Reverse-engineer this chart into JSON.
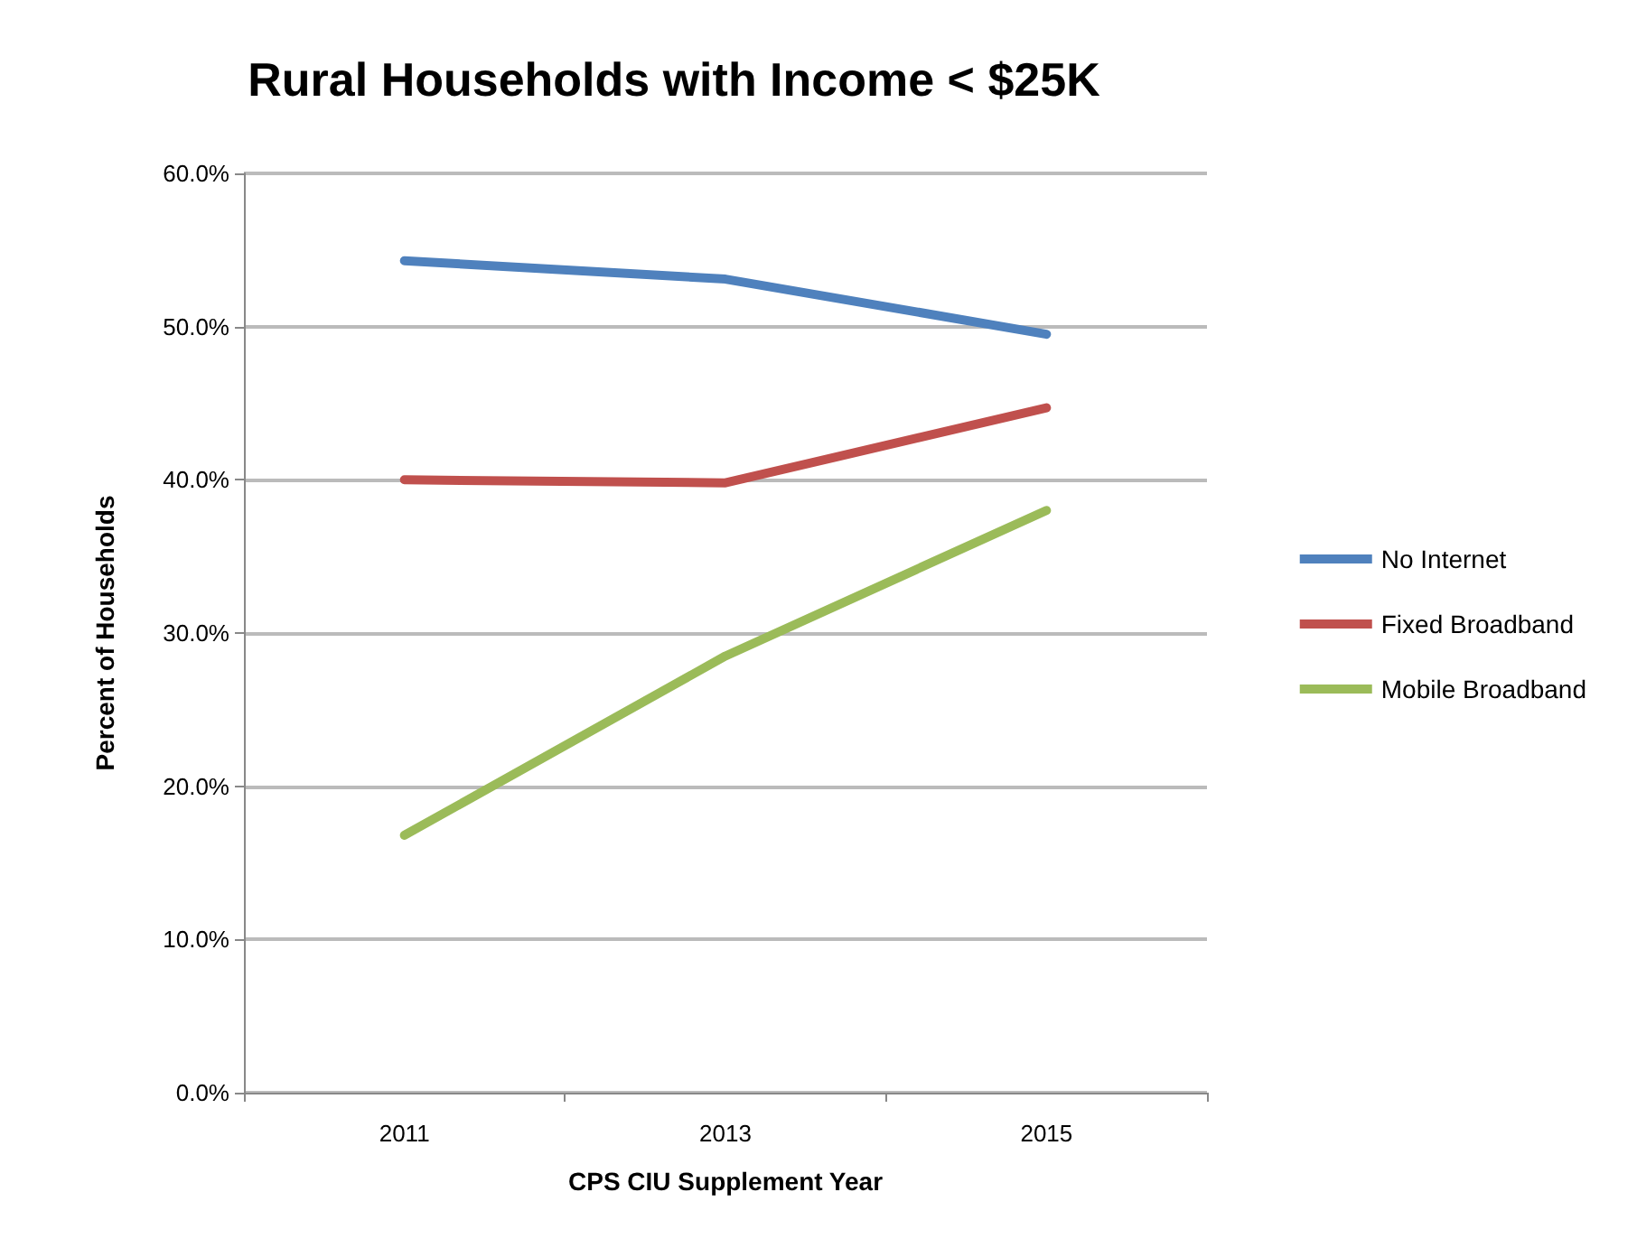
{
  "chart_data": {
    "type": "line",
    "title": "Rural Households with Income < $25K",
    "xlabel": "CPS CIU Supplement Year",
    "ylabel": "Percent of Households",
    "categories": [
      "2011",
      "2013",
      "2015"
    ],
    "series": [
      {
        "name": "No Internet",
        "color": "#4f81bd",
        "values": [
          54.3,
          53.1,
          49.5
        ]
      },
      {
        "name": "Fixed Broadband",
        "color": "#c0504d",
        "values": [
          40.0,
          39.8,
          44.7
        ]
      },
      {
        "name": "Mobile Broadband",
        "color": "#9bbb59",
        "values": [
          16.8,
          28.5,
          38.0
        ]
      }
    ],
    "ylim": [
      0,
      60
    ],
    "yticks": [
      {
        "value": 0,
        "label": "0.0%"
      },
      {
        "value": 10,
        "label": "10.0%"
      },
      {
        "value": 20,
        "label": "20.0%"
      },
      {
        "value": 30,
        "label": "30.0%"
      },
      {
        "value": 40,
        "label": "40.0%"
      },
      {
        "value": 50,
        "label": "50.0%"
      },
      {
        "value": 60,
        "label": "60.0%"
      }
    ],
    "grid": "y",
    "legend": "right",
    "marker": "none",
    "line_style": "solid"
  }
}
